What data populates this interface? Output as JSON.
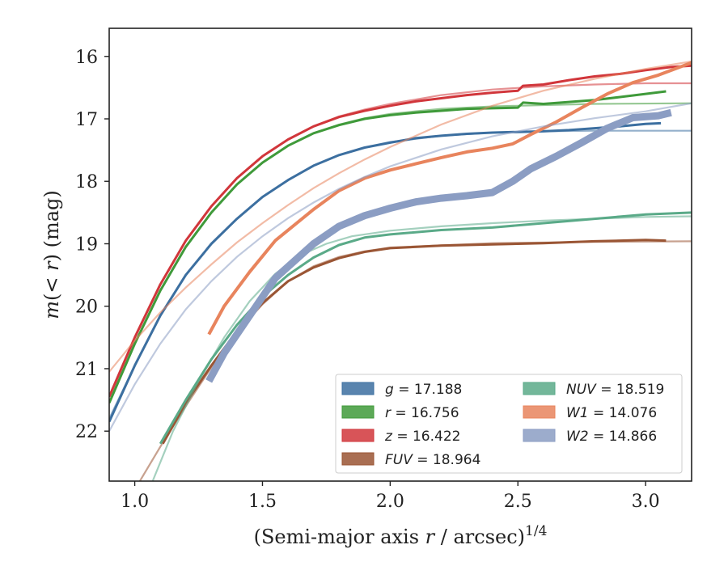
{
  "chart_data": {
    "type": "line",
    "xlabel": "(Semi-major axis r / arcsec)^1/4",
    "ylabel": "m(< r) (mag)",
    "xlim": [
      0.9,
      3.18
    ],
    "ylim": [
      22.8,
      15.55
    ],
    "y_inverted": true,
    "x_ticks": [
      "1.0",
      "1.5",
      "2.0",
      "2.5",
      "3.0"
    ],
    "y_ticks": [
      "16",
      "17",
      "18",
      "19",
      "20",
      "21",
      "22"
    ],
    "grid": false,
    "legend_position": "lower-right",
    "legend_columns": 2,
    "series": [
      {
        "name": "g = 17.188",
        "band": "g",
        "total_mag": "17.188",
        "color": "#3c6fa0",
        "data_points": [
          [
            0.9,
            21.85
          ],
          [
            1.0,
            20.95
          ],
          [
            1.1,
            20.15
          ],
          [
            1.2,
            19.5
          ],
          [
            1.3,
            19.0
          ],
          [
            1.4,
            18.6
          ],
          [
            1.5,
            18.25
          ],
          [
            1.6,
            17.98
          ],
          [
            1.7,
            17.75
          ],
          [
            1.8,
            17.58
          ],
          [
            1.9,
            17.46
          ],
          [
            2.0,
            17.38
          ],
          [
            2.1,
            17.31
          ],
          [
            2.2,
            17.27
          ],
          [
            2.3,
            17.24
          ],
          [
            2.4,
            17.22
          ],
          [
            2.5,
            17.21
          ],
          [
            2.6,
            17.2
          ],
          [
            2.7,
            17.18
          ],
          [
            2.8,
            17.15
          ],
          [
            2.9,
            17.12
          ],
          [
            3.0,
            17.08
          ],
          [
            3.06,
            17.07
          ]
        ],
        "model_points": [
          [
            0.9,
            21.8
          ],
          [
            1.0,
            20.95
          ],
          [
            1.1,
            20.15
          ],
          [
            1.2,
            19.5
          ],
          [
            1.3,
            19.0
          ],
          [
            1.4,
            18.6
          ],
          [
            1.5,
            18.25
          ],
          [
            1.6,
            17.98
          ],
          [
            1.7,
            17.75
          ],
          [
            1.8,
            17.58
          ],
          [
            1.9,
            17.46
          ],
          [
            2.0,
            17.37
          ],
          [
            2.2,
            17.27
          ],
          [
            2.4,
            17.22
          ],
          [
            2.6,
            17.2
          ],
          [
            2.8,
            17.19
          ],
          [
            3.18,
            17.19
          ]
        ]
      },
      {
        "name": "r = 16.756",
        "band": "r",
        "total_mag": "16.756",
        "color": "#3f9a3a",
        "data_points": [
          [
            0.9,
            21.55
          ],
          [
            1.0,
            20.6
          ],
          [
            1.1,
            19.75
          ],
          [
            1.2,
            19.05
          ],
          [
            1.3,
            18.5
          ],
          [
            1.4,
            18.05
          ],
          [
            1.5,
            17.7
          ],
          [
            1.6,
            17.43
          ],
          [
            1.7,
            17.23
          ],
          [
            1.8,
            17.1
          ],
          [
            1.9,
            17.0
          ],
          [
            2.0,
            16.94
          ],
          [
            2.1,
            16.9
          ],
          [
            2.2,
            16.87
          ],
          [
            2.3,
            16.84
          ],
          [
            2.4,
            16.83
          ],
          [
            2.5,
            16.82
          ],
          [
            2.52,
            16.74
          ],
          [
            2.6,
            16.76
          ],
          [
            2.7,
            16.73
          ],
          [
            2.8,
            16.7
          ],
          [
            2.9,
            16.65
          ],
          [
            3.0,
            16.6
          ],
          [
            3.08,
            16.56
          ]
        ],
        "model_points": [
          [
            0.9,
            21.55
          ],
          [
            1.0,
            20.6
          ],
          [
            1.1,
            19.75
          ],
          [
            1.2,
            19.05
          ],
          [
            1.3,
            18.5
          ],
          [
            1.4,
            18.05
          ],
          [
            1.5,
            17.7
          ],
          [
            1.6,
            17.43
          ],
          [
            1.7,
            17.23
          ],
          [
            1.8,
            17.09
          ],
          [
            1.9,
            16.99
          ],
          [
            2.0,
            16.92
          ],
          [
            2.2,
            16.84
          ],
          [
            2.4,
            16.8
          ],
          [
            2.6,
            16.78
          ],
          [
            2.8,
            16.76
          ],
          [
            3.18,
            16.75
          ]
        ]
      },
      {
        "name": "z = 16.422",
        "band": "z",
        "total_mag": "16.422",
        "color": "#d1363b",
        "data_points": [
          [
            0.9,
            21.45
          ],
          [
            1.0,
            20.5
          ],
          [
            1.1,
            19.65
          ],
          [
            1.2,
            18.95
          ],
          [
            1.3,
            18.4
          ],
          [
            1.4,
            17.95
          ],
          [
            1.5,
            17.6
          ],
          [
            1.6,
            17.33
          ],
          [
            1.7,
            17.12
          ],
          [
            1.8,
            16.97
          ],
          [
            1.9,
            16.87
          ],
          [
            2.0,
            16.79
          ],
          [
            2.1,
            16.72
          ],
          [
            2.2,
            16.67
          ],
          [
            2.3,
            16.62
          ],
          [
            2.4,
            16.58
          ],
          [
            2.5,
            16.55
          ],
          [
            2.52,
            16.47
          ],
          [
            2.6,
            16.45
          ],
          [
            2.7,
            16.38
          ],
          [
            2.8,
            16.32
          ],
          [
            2.9,
            16.28
          ],
          [
            3.0,
            16.22
          ],
          [
            3.1,
            16.17
          ],
          [
            3.18,
            16.15
          ]
        ],
        "model_points": [
          [
            0.9,
            21.45
          ],
          [
            1.0,
            20.5
          ],
          [
            1.1,
            19.65
          ],
          [
            1.2,
            18.95
          ],
          [
            1.3,
            18.4
          ],
          [
            1.4,
            17.95
          ],
          [
            1.5,
            17.6
          ],
          [
            1.6,
            17.33
          ],
          [
            1.7,
            17.12
          ],
          [
            1.8,
            16.96
          ],
          [
            1.9,
            16.85
          ],
          [
            2.0,
            16.76
          ],
          [
            2.2,
            16.62
          ],
          [
            2.4,
            16.53
          ],
          [
            2.6,
            16.48
          ],
          [
            2.8,
            16.45
          ],
          [
            3.0,
            16.43
          ],
          [
            3.18,
            16.43
          ]
        ]
      },
      {
        "name": "FUV = 18.964",
        "band": "FUV",
        "total_mag": "18.964",
        "color": "#9a5534",
        "data_points": [
          [
            1.11,
            22.2
          ],
          [
            1.2,
            21.55
          ],
          [
            1.3,
            20.95
          ],
          [
            1.4,
            20.4
          ],
          [
            1.5,
            19.95
          ],
          [
            1.6,
            19.6
          ],
          [
            1.7,
            19.38
          ],
          [
            1.8,
            19.23
          ],
          [
            1.9,
            19.13
          ],
          [
            2.0,
            19.07
          ],
          [
            2.2,
            19.03
          ],
          [
            2.4,
            19.01
          ],
          [
            2.6,
            18.99
          ],
          [
            2.8,
            18.96
          ],
          [
            3.0,
            18.94
          ],
          [
            3.08,
            18.95
          ]
        ],
        "model_points": [
          [
            1.02,
            22.8
          ],
          [
            1.1,
            22.25
          ],
          [
            1.2,
            21.6
          ],
          [
            1.3,
            20.98
          ],
          [
            1.4,
            20.42
          ],
          [
            1.5,
            19.97
          ],
          [
            1.6,
            19.6
          ],
          [
            1.7,
            19.36
          ],
          [
            1.8,
            19.21
          ],
          [
            1.9,
            19.12
          ],
          [
            2.0,
            19.06
          ],
          [
            2.4,
            18.99
          ],
          [
            2.8,
            18.97
          ],
          [
            3.18,
            18.96
          ]
        ]
      },
      {
        "name": "NUV = 18.519",
        "band": "NUV",
        "total_mag": "18.519",
        "color": "#5aaa88",
        "data_points": [
          [
            1.1,
            22.2
          ],
          [
            1.2,
            21.5
          ],
          [
            1.3,
            20.85
          ],
          [
            1.4,
            20.3
          ],
          [
            1.5,
            19.85
          ],
          [
            1.6,
            19.5
          ],
          [
            1.7,
            19.22
          ],
          [
            1.8,
            19.02
          ],
          [
            1.9,
            18.9
          ],
          [
            2.0,
            18.85
          ],
          [
            2.2,
            18.78
          ],
          [
            2.4,
            18.74
          ],
          [
            2.6,
            18.67
          ],
          [
            2.8,
            18.6
          ],
          [
            3.0,
            18.53
          ],
          [
            3.18,
            18.5
          ]
        ],
        "model_points": [
          [
            1.07,
            22.8
          ],
          [
            1.15,
            22.0
          ],
          [
            1.25,
            21.2
          ],
          [
            1.35,
            20.5
          ],
          [
            1.45,
            19.92
          ],
          [
            1.55,
            19.48
          ],
          [
            1.65,
            19.18
          ],
          [
            1.75,
            19.0
          ],
          [
            1.85,
            18.88
          ],
          [
            2.0,
            18.79
          ],
          [
            2.2,
            18.72
          ],
          [
            2.4,
            18.67
          ],
          [
            2.6,
            18.63
          ],
          [
            2.8,
            18.6
          ],
          [
            3.0,
            18.57
          ],
          [
            3.18,
            18.56
          ]
        ]
      },
      {
        "name": "W1 = 14.076",
        "band": "W1",
        "total_mag": "14.076",
        "color": "#e8845d",
        "data_points": [
          [
            1.29,
            20.45
          ],
          [
            1.35,
            20.0
          ],
          [
            1.45,
            19.45
          ],
          [
            1.55,
            18.95
          ],
          [
            1.7,
            18.45
          ],
          [
            1.8,
            18.15
          ],
          [
            1.9,
            17.95
          ],
          [
            2.0,
            17.82
          ],
          [
            2.1,
            17.72
          ],
          [
            2.2,
            17.62
          ],
          [
            2.3,
            17.53
          ],
          [
            2.4,
            17.47
          ],
          [
            2.48,
            17.4
          ],
          [
            2.55,
            17.25
          ],
          [
            2.65,
            17.05
          ],
          [
            2.75,
            16.82
          ],
          [
            2.85,
            16.6
          ],
          [
            2.95,
            16.42
          ],
          [
            3.05,
            16.3
          ],
          [
            3.18,
            16.1
          ]
        ],
        "model_points": [
          [
            0.9,
            21.05
          ],
          [
            1.0,
            20.55
          ],
          [
            1.1,
            20.1
          ],
          [
            1.2,
            19.7
          ],
          [
            1.3,
            19.33
          ],
          [
            1.4,
            18.98
          ],
          [
            1.5,
            18.67
          ],
          [
            1.6,
            18.38
          ],
          [
            1.7,
            18.11
          ],
          [
            1.8,
            17.87
          ],
          [
            1.9,
            17.65
          ],
          [
            2.0,
            17.45
          ],
          [
            2.2,
            17.09
          ],
          [
            2.4,
            16.79
          ],
          [
            2.6,
            16.55
          ],
          [
            2.8,
            16.36
          ],
          [
            3.0,
            16.2
          ],
          [
            3.18,
            16.08
          ]
        ]
      },
      {
        "name": "W2 = 14.866",
        "band": "W2",
        "total_mag": "14.866",
        "color": "#8b9dc3",
        "data_points": [
          [
            1.29,
            21.2
          ],
          [
            1.35,
            20.75
          ],
          [
            1.45,
            20.15
          ],
          [
            1.55,
            19.55
          ],
          [
            1.7,
            19.0
          ],
          [
            1.8,
            18.72
          ],
          [
            1.9,
            18.55
          ],
          [
            2.0,
            18.43
          ],
          [
            2.1,
            18.33
          ],
          [
            2.2,
            18.27
          ],
          [
            2.3,
            18.23
          ],
          [
            2.4,
            18.18
          ],
          [
            2.48,
            18.0
          ],
          [
            2.55,
            17.8
          ],
          [
            2.65,
            17.6
          ],
          [
            2.75,
            17.38
          ],
          [
            2.85,
            17.15
          ],
          [
            2.95,
            16.98
          ],
          [
            3.05,
            16.95
          ],
          [
            3.1,
            16.9
          ]
        ],
        "model_points": [
          [
            0.9,
            22.0
          ],
          [
            1.0,
            21.25
          ],
          [
            1.1,
            20.6
          ],
          [
            1.2,
            20.05
          ],
          [
            1.3,
            19.6
          ],
          [
            1.4,
            19.21
          ],
          [
            1.5,
            18.88
          ],
          [
            1.6,
            18.59
          ],
          [
            1.7,
            18.34
          ],
          [
            1.8,
            18.12
          ],
          [
            1.9,
            17.93
          ],
          [
            2.0,
            17.76
          ],
          [
            2.2,
            17.49
          ],
          [
            2.4,
            17.28
          ],
          [
            2.6,
            17.12
          ],
          [
            2.8,
            16.99
          ],
          [
            3.0,
            16.88
          ],
          [
            3.18,
            16.75
          ]
        ]
      }
    ]
  }
}
